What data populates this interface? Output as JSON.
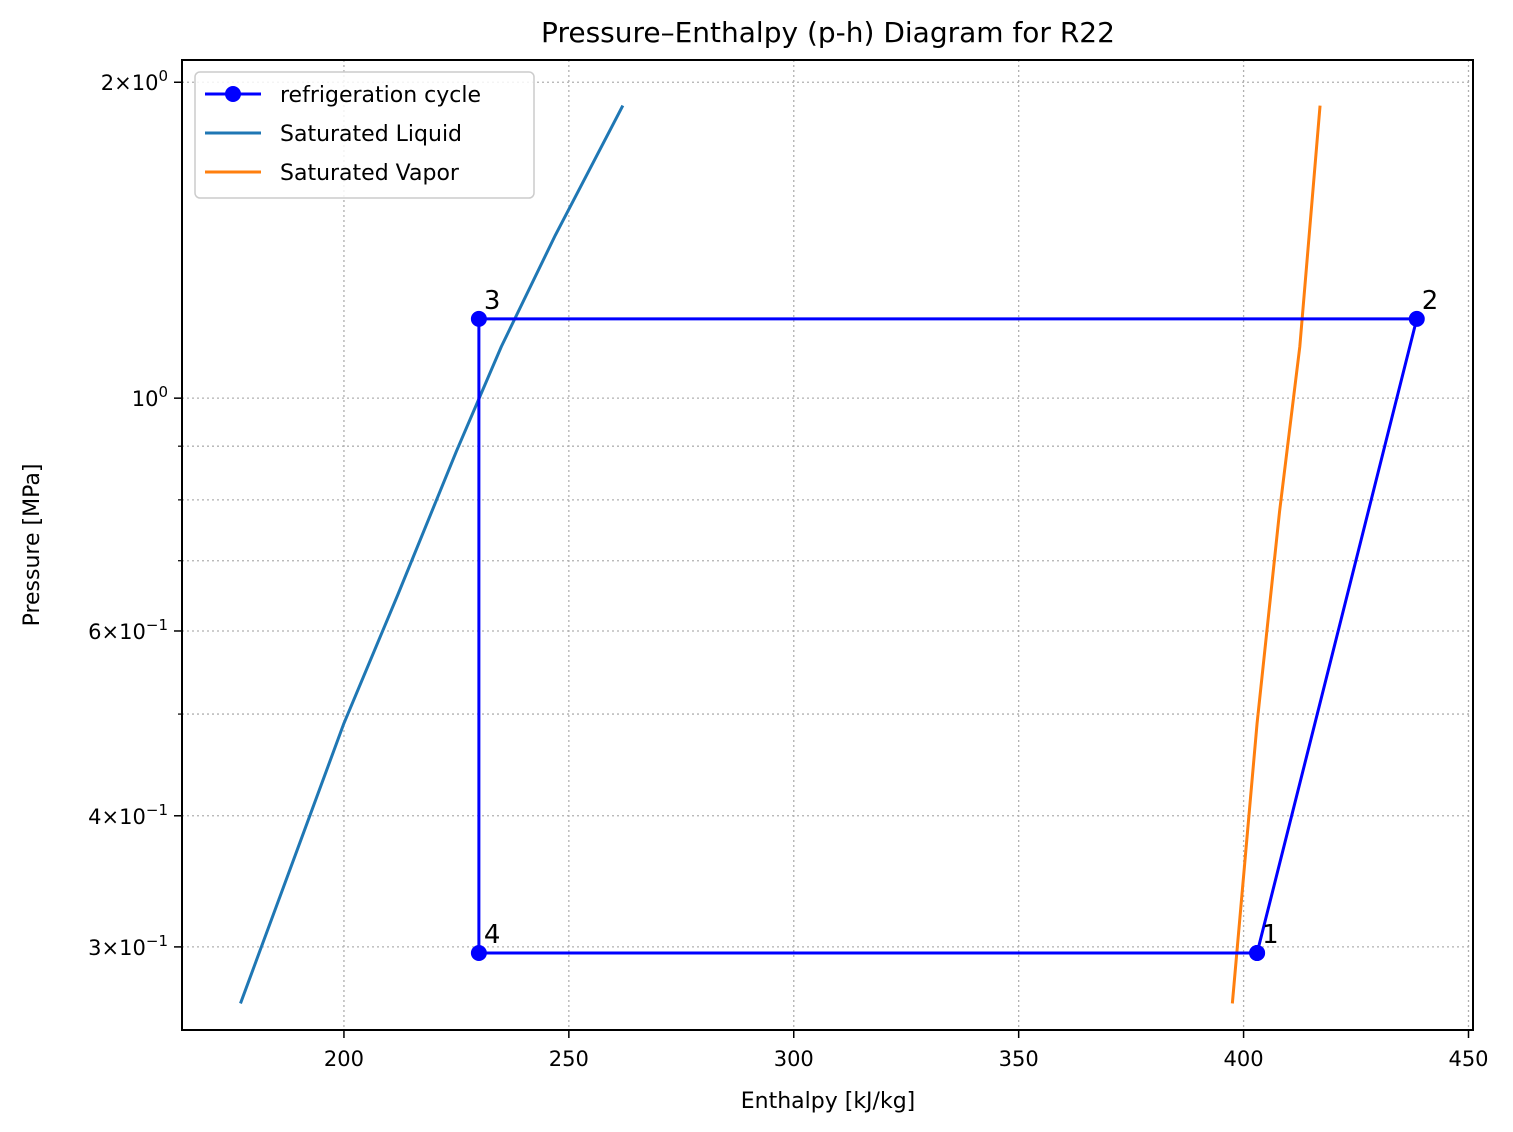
{
  "chart_data": {
    "type": "line",
    "title": "Pressure–Enthalpy (p-h) Diagram for R22",
    "xlabel": "Enthalpy [kJ/kg]",
    "ylabel": "Pressure [MPa]",
    "xlim": [
      164,
      451
    ],
    "ylim": [
      0.25,
      2.1
    ],
    "yscale": "log",
    "grid": true,
    "legend_position": "top-left",
    "x_ticks": [
      200,
      250,
      300,
      350,
      400,
      450
    ],
    "y_ticks": [
      {
        "value": 0.3,
        "mantissa": "3",
        "exponent": "−1"
      },
      {
        "value": 0.4,
        "mantissa": "4",
        "exponent": "−1"
      },
      {
        "value": 0.6,
        "mantissa": "6",
        "exponent": "−1"
      },
      {
        "value": 1.0,
        "mantissa": "",
        "exponent": "0"
      },
      {
        "value": 2.0,
        "mantissa": "2",
        "exponent": "0"
      }
    ],
    "y_minor_ticks": [
      0.5,
      0.7,
      0.8,
      0.9
    ],
    "series": [
      {
        "name": "refrigeration cycle",
        "color": "#0000ff",
        "marker": "circle",
        "points": [
          {
            "label": "1",
            "x": 403,
            "y": 0.296
          },
          {
            "label": "2",
            "x": 438.5,
            "y": 1.19
          },
          {
            "label": "3",
            "x": 230,
            "y": 1.19
          },
          {
            "label": "4",
            "x": 230,
            "y": 0.296
          },
          {
            "label": "",
            "x": 403,
            "y": 0.296
          }
        ]
      },
      {
        "name": "Saturated Liquid",
        "color": "#1f77b4",
        "points": [
          {
            "x": 177,
            "y": 0.265
          },
          {
            "x": 190,
            "y": 0.375
          },
          {
            "x": 200,
            "y": 0.49
          },
          {
            "x": 212,
            "y": 0.65
          },
          {
            "x": 225,
            "y": 0.89
          },
          {
            "x": 235,
            "y": 1.12
          },
          {
            "x": 247,
            "y": 1.43
          },
          {
            "x": 262,
            "y": 1.9
          }
        ]
      },
      {
        "name": "Saturated Vapor",
        "color": "#ff7f0e",
        "points": [
          {
            "x": 397.5,
            "y": 0.265
          },
          {
            "x": 403,
            "y": 0.49
          },
          {
            "x": 408,
            "y": 0.78
          },
          {
            "x": 412.5,
            "y": 1.12
          },
          {
            "x": 417,
            "y": 1.9
          }
        ]
      }
    ]
  }
}
